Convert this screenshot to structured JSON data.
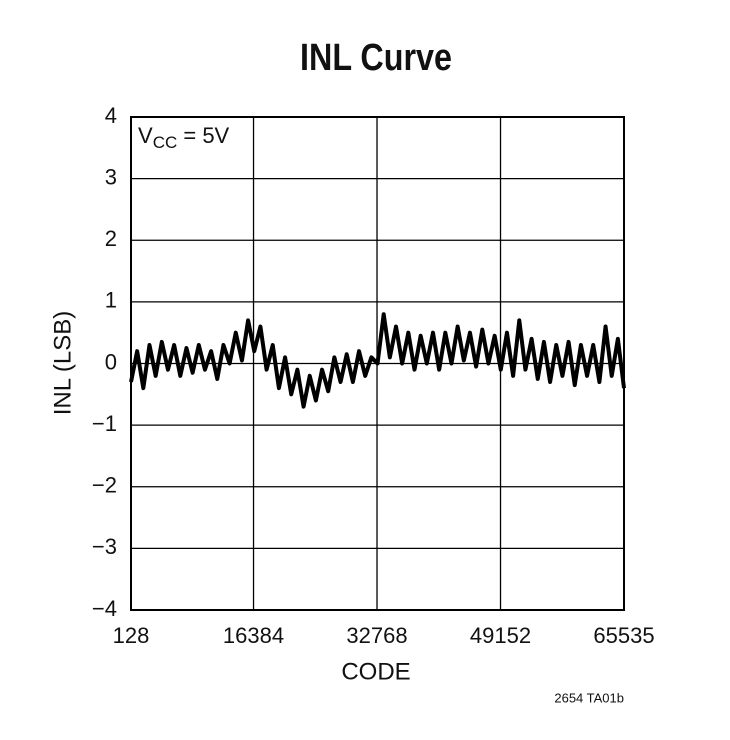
{
  "chart_data": {
    "type": "line",
    "title": "INL Curve",
    "xlabel": "CODE",
    "ylabel": "INL (LSB)",
    "annotation": {
      "main": "V",
      "sub": "CC",
      "tail": " = 5V"
    },
    "footnote": "2654 TA01b",
    "color": "#000000",
    "grid": true,
    "xlim": [
      128,
      65535
    ],
    "xticks": [
      128,
      16384,
      32768,
      49152,
      65535
    ],
    "ylim": [
      -4,
      4
    ],
    "yticks": [
      {
        "value": -4,
        "label": "−4"
      },
      {
        "value": -3,
        "label": "−3"
      },
      {
        "value": -2,
        "label": "−2"
      },
      {
        "value": -1,
        "label": "−1"
      },
      0,
      1,
      2,
      3,
      4
    ],
    "x": [
      128,
      946,
      1763,
      2581,
      3399,
      4216,
      5034,
      5852,
      6669,
      7487,
      8305,
      9122,
      9940,
      10758,
      11575,
      12393,
      13211,
      14028,
      14846,
      15664,
      16481,
      17299,
      18117,
      18934,
      19752,
      20570,
      21387,
      22205,
      23023,
      23840,
      24658,
      25476,
      26293,
      27111,
      27929,
      28746,
      29564,
      30382,
      31199,
      32017,
      32835,
      33652,
      34470,
      35288,
      36105,
      36923,
      37741,
      38558,
      39376,
      40194,
      41011,
      41829,
      42647,
      43464,
      44282,
      45100,
      45917,
      46735,
      47553,
      48370,
      49188,
      50006,
      50823,
      51641,
      52459,
      53276,
      54094,
      54912,
      55729,
      56547,
      57365,
      58182,
      59000,
      59818,
      60635,
      61453,
      62271,
      63088,
      63906,
      64723,
      65535
    ],
    "values": [
      -0.3,
      0.2,
      -0.4,
      0.3,
      -0.2,
      0.35,
      -0.1,
      0.3,
      -0.2,
      0.25,
      -0.15,
      0.3,
      -0.1,
      0.2,
      -0.25,
      0.3,
      0.0,
      0.5,
      0.05,
      0.7,
      0.2,
      0.6,
      -0.1,
      0.3,
      -0.4,
      0.1,
      -0.5,
      -0.1,
      -0.7,
      -0.2,
      -0.6,
      -0.1,
      -0.45,
      0.1,
      -0.3,
      0.15,
      -0.3,
      0.2,
      -0.2,
      0.1,
      0.0,
      0.8,
      0.1,
      0.6,
      0.0,
      0.5,
      -0.1,
      0.45,
      0.0,
      0.5,
      -0.1,
      0.5,
      0.0,
      0.6,
      0.05,
      0.5,
      -0.05,
      0.55,
      0.0,
      0.45,
      -0.1,
      0.5,
      -0.2,
      0.7,
      -0.1,
      0.4,
      -0.25,
      0.35,
      -0.3,
      0.3,
      -0.2,
      0.35,
      -0.35,
      0.3,
      -0.2,
      0.3,
      -0.3,
      0.6,
      -0.2,
      0.4,
      -0.4
    ]
  }
}
